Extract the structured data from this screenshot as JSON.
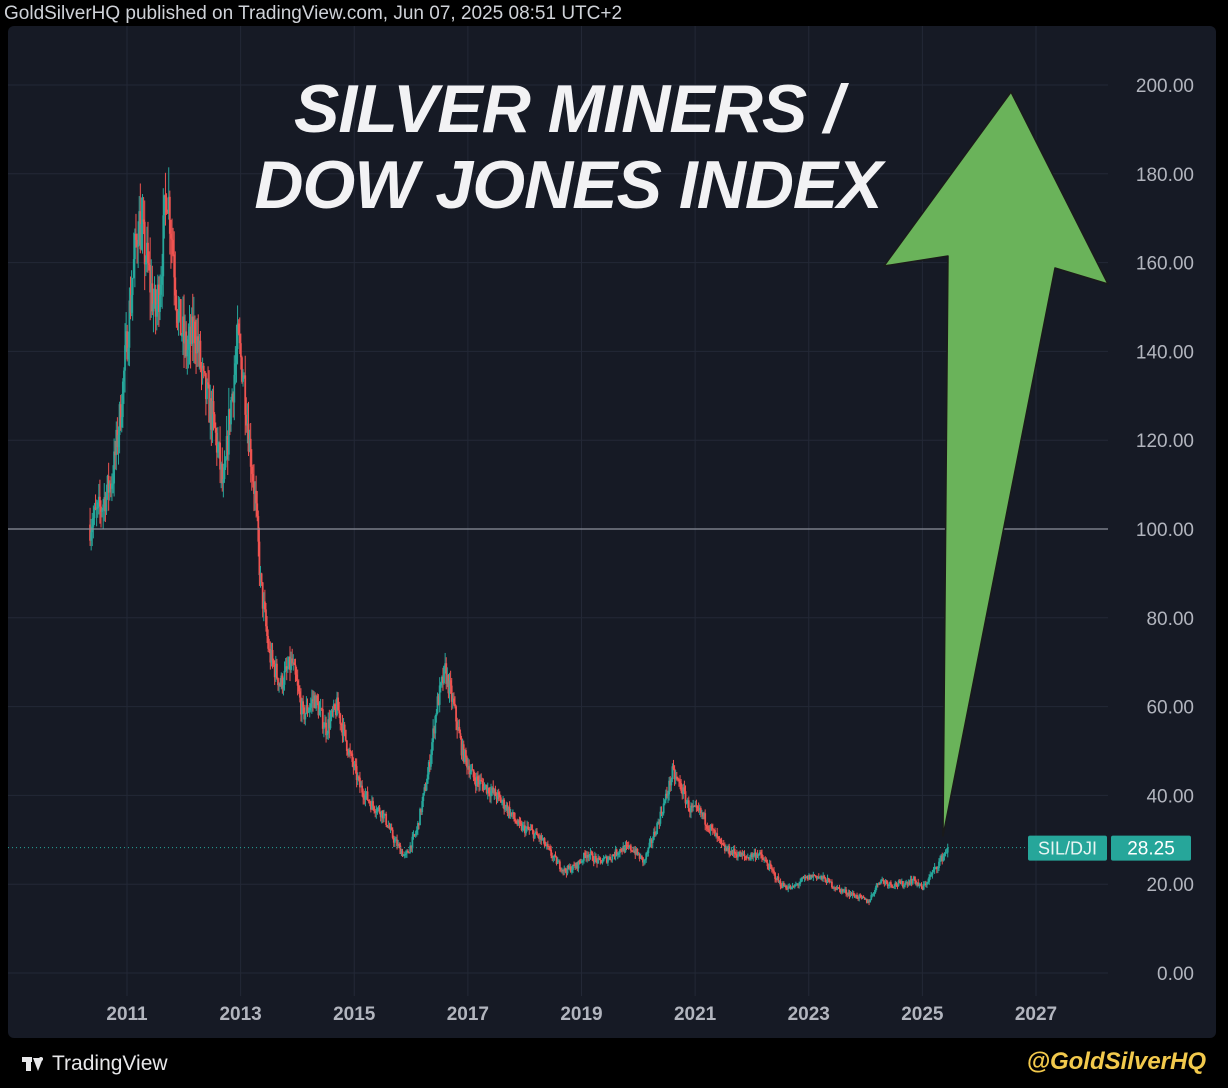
{
  "header": {
    "published_text": "GoldSilverHQ published on TradingView.com, Jun 07, 2025 08:51 UTC+2"
  },
  "footer": {
    "brand": "TradingView",
    "handle": "@GoldSilverHQ"
  },
  "colors": {
    "background": "#161a25",
    "up": "#26a69a",
    "down": "#ef5350",
    "arrow": "#6ab35a",
    "handle": "#f2c94c"
  },
  "chart_data": {
    "type": "candlestick",
    "title": "SILVER MINERS / DOW JONES INDEX",
    "title_lines": [
      "SILVER MINERS /",
      "DOW JONES INDEX"
    ],
    "symbol": "SIL/DJI",
    "last_price": "28.25",
    "x_ticks": [
      "2011",
      "2013",
      "2015",
      "2017",
      "2019",
      "2021",
      "2023",
      "2025",
      "2027"
    ],
    "y_ticks": [
      "0.00",
      "20.00",
      "40.00",
      "60.00",
      "80.00",
      "100.00",
      "120.00",
      "140.00",
      "160.00",
      "180.00",
      "200.00"
    ],
    "ylim": [
      0,
      200
    ],
    "xlim": [
      2009.9,
      2028.0
    ],
    "reference_line": 100,
    "price_path": [
      [
        2010.35,
        101
      ],
      [
        2010.55,
        105
      ],
      [
        2010.75,
        112
      ],
      [
        2010.9,
        128
      ],
      [
        2011.05,
        150
      ],
      [
        2011.2,
        170
      ],
      [
        2011.35,
        160
      ],
      [
        2011.5,
        148
      ],
      [
        2011.6,
        158
      ],
      [
        2011.7,
        178
      ],
      [
        2011.8,
        165
      ],
      [
        2011.9,
        148
      ],
      [
        2012.05,
        140
      ],
      [
        2012.2,
        145
      ],
      [
        2012.35,
        132
      ],
      [
        2012.5,
        125
      ],
      [
        2012.6,
        118
      ],
      [
        2012.7,
        108
      ],
      [
        2012.8,
        125
      ],
      [
        2012.95,
        142
      ],
      [
        2013.05,
        135
      ],
      [
        2013.15,
        120
      ],
      [
        2013.25,
        108
      ],
      [
        2013.35,
        88
      ],
      [
        2013.5,
        72
      ],
      [
        2013.7,
        65
      ],
      [
        2013.9,
        70
      ],
      [
        2014.1,
        58
      ],
      [
        2014.3,
        62
      ],
      [
        2014.5,
        55
      ],
      [
        2014.7,
        60
      ],
      [
        2014.9,
        50
      ],
      [
        2015.1,
        42
      ],
      [
        2015.3,
        38
      ],
      [
        2015.5,
        36
      ],
      [
        2015.7,
        30
      ],
      [
        2015.9,
        26
      ],
      [
        2016.1,
        32
      ],
      [
        2016.3,
        45
      ],
      [
        2016.45,
        60
      ],
      [
        2016.6,
        68
      ],
      [
        2016.75,
        60
      ],
      [
        2016.9,
        50
      ],
      [
        2017.1,
        44
      ],
      [
        2017.3,
        42
      ],
      [
        2017.5,
        40
      ],
      [
        2017.7,
        37
      ],
      [
        2017.9,
        33
      ],
      [
        2018.1,
        32
      ],
      [
        2018.3,
        30
      ],
      [
        2018.5,
        26
      ],
      [
        2018.7,
        23
      ],
      [
        2018.9,
        24
      ],
      [
        2019.1,
        27
      ],
      [
        2019.3,
        25
      ],
      [
        2019.5,
        26
      ],
      [
        2019.7,
        28
      ],
      [
        2019.9,
        28
      ],
      [
        2020.1,
        25
      ],
      [
        2020.3,
        32
      ],
      [
        2020.5,
        40
      ],
      [
        2020.6,
        45
      ],
      [
        2020.75,
        42
      ],
      [
        2020.9,
        37
      ],
      [
        2021.1,
        36
      ],
      [
        2021.3,
        32
      ],
      [
        2021.5,
        28
      ],
      [
        2021.7,
        27
      ],
      [
        2021.9,
        26
      ],
      [
        2022.1,
        27
      ],
      [
        2022.3,
        24
      ],
      [
        2022.5,
        20
      ],
      [
        2022.7,
        19
      ],
      [
        2022.9,
        21
      ],
      [
        2023.1,
        22
      ],
      [
        2023.3,
        21
      ],
      [
        2023.5,
        19
      ],
      [
        2023.7,
        18
      ],
      [
        2023.9,
        17
      ],
      [
        2024.05,
        16
      ],
      [
        2024.25,
        21
      ],
      [
        2024.45,
        20
      ],
      [
        2024.65,
        20
      ],
      [
        2024.85,
        21
      ],
      [
        2025.0,
        19
      ],
      [
        2025.15,
        22
      ],
      [
        2025.3,
        25
      ],
      [
        2025.45,
        28.25
      ]
    ],
    "annotation": "green arrow pointing up from the last price toward 200"
  }
}
